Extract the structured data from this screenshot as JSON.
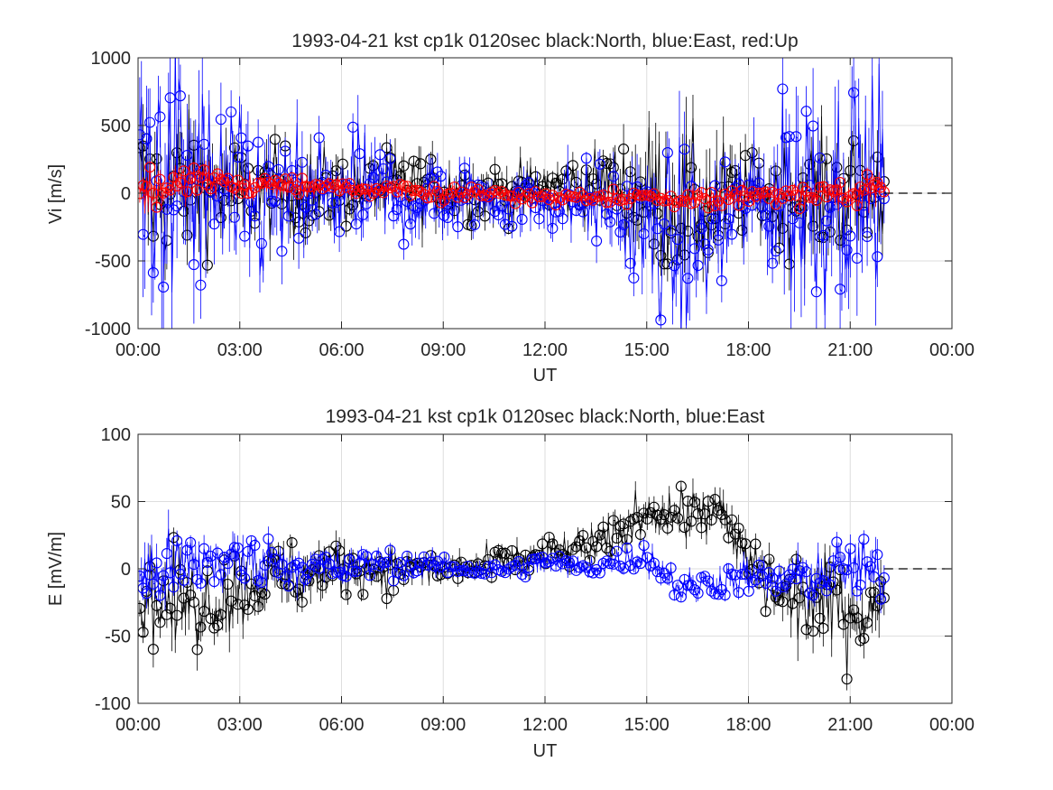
{
  "chart_data": [
    {
      "type": "scatter",
      "title": "1993-04-21 kst cp1k 0120sec black:North, blue:East, red:Up",
      "xlabel": "UT",
      "ylabel": "Vi [m/s]",
      "xticks": [
        "00:00",
        "03:00",
        "06:00",
        "09:00",
        "12:00",
        "15:00",
        "18:00",
        "21:00",
        "00:00"
      ],
      "yticks": [
        "-1000",
        "-500",
        "0",
        "500",
        "1000"
      ],
      "xlim_hours": [
        0,
        24
      ],
      "ylim": [
        -1000,
        1000
      ],
      "data_end_hours": 22.0,
      "zero_line": {
        "from_hours": 22.0,
        "to_hours": 24,
        "style": "dashed"
      },
      "grid": true,
      "marker": "circle-with-errorbars",
      "series": [
        {
          "name": "North",
          "color": "#000000",
          "envelope_hours": [
            0,
            1,
            2,
            3,
            4,
            5,
            6,
            7,
            8,
            9,
            10,
            11,
            12,
            13,
            14,
            15,
            16,
            17,
            18,
            19,
            20,
            21,
            22
          ],
          "center": [
            0,
            50,
            50,
            0,
            20,
            0,
            20,
            50,
            50,
            30,
            0,
            0,
            50,
            50,
            80,
            0,
            -100,
            -100,
            0,
            -30,
            0,
            0,
            0
          ],
          "spread": [
            600,
            500,
            400,
            350,
            300,
            300,
            250,
            250,
            250,
            220,
            200,
            180,
            200,
            200,
            250,
            450,
            500,
            450,
            250,
            350,
            400,
            400,
            350
          ]
        },
        {
          "name": "East",
          "color": "#0000ff",
          "envelope_hours": [
            0,
            1,
            2,
            3,
            4,
            5,
            6,
            7,
            8,
            9,
            10,
            11,
            12,
            13,
            14,
            15,
            16,
            17,
            18,
            19,
            20,
            21,
            22
          ],
          "center": [
            0,
            100,
            0,
            -50,
            -100,
            -50,
            0,
            0,
            -50,
            -50,
            -50,
            -50,
            -50,
            -50,
            -100,
            -300,
            -400,
            -300,
            -50,
            0,
            0,
            100,
            50
          ],
          "spread": [
            900,
            900,
            700,
            500,
            450,
            400,
            400,
            350,
            300,
            300,
            200,
            200,
            200,
            250,
            300,
            500,
            600,
            500,
            350,
            700,
            800,
            850,
            700
          ]
        },
        {
          "name": "Up",
          "color": "#ff0000",
          "envelope_hours": [
            0,
            1,
            2,
            3,
            4,
            5,
            6,
            7,
            8,
            9,
            10,
            11,
            12,
            13,
            14,
            15,
            16,
            17,
            18,
            19,
            20,
            21,
            22
          ],
          "center": [
            0,
            50,
            100,
            50,
            50,
            50,
            30,
            30,
            20,
            0,
            0,
            -20,
            -30,
            -30,
            -30,
            -20,
            -50,
            -50,
            -20,
            0,
            0,
            0,
            0
          ],
          "spread": [
            150,
            120,
            100,
            80,
            70,
            60,
            60,
            50,
            50,
            50,
            40,
            40,
            40,
            40,
            50,
            50,
            60,
            60,
            60,
            70,
            80,
            100,
            120
          ]
        }
      ]
    },
    {
      "type": "scatter",
      "title": "1993-04-21 kst cp1k 0120sec black:North, blue:East",
      "xlabel": "UT",
      "ylabel": "E [mV/m]",
      "xticks": [
        "00:00",
        "03:00",
        "06:00",
        "09:00",
        "12:00",
        "15:00",
        "18:00",
        "21:00",
        "00:00"
      ],
      "yticks": [
        "-100",
        "-50",
        "0",
        "50",
        "100"
      ],
      "xlim_hours": [
        0,
        24
      ],
      "ylim": [
        -100,
        100
      ],
      "data_end_hours": 22.0,
      "zero_line": {
        "from_hours": 22.0,
        "to_hours": 24,
        "style": "dashed"
      },
      "grid": true,
      "marker": "circle-with-errorbars",
      "series": [
        {
          "name": "North",
          "color": "#000000",
          "envelope_hours": [
            0,
            1,
            2,
            3,
            4,
            5,
            6,
            7,
            8,
            9,
            10,
            11,
            12,
            13,
            14,
            15,
            16,
            17,
            18,
            19,
            20,
            21,
            22
          ],
          "center": [
            -20,
            -25,
            -25,
            -15,
            -5,
            -5,
            0,
            0,
            0,
            0,
            0,
            5,
            10,
            15,
            20,
            45,
            40,
            45,
            5,
            -20,
            -25,
            -30,
            -30
          ],
          "spread": [
            30,
            30,
            28,
            25,
            25,
            25,
            20,
            15,
            12,
            12,
            10,
            12,
            12,
            12,
            15,
            15,
            18,
            18,
            20,
            25,
            30,
            30,
            30
          ]
        },
        {
          "name": "East",
          "color": "#0000ff",
          "envelope_hours": [
            0,
            1,
            2,
            3,
            4,
            5,
            6,
            7,
            8,
            9,
            10,
            11,
            12,
            13,
            14,
            15,
            16,
            17,
            18,
            19,
            20,
            21,
            22
          ],
          "center": [
            -5,
            0,
            5,
            5,
            5,
            0,
            0,
            5,
            2,
            2,
            0,
            0,
            5,
            0,
            5,
            10,
            -15,
            -10,
            -5,
            -10,
            -5,
            0,
            -5
          ],
          "spread": [
            25,
            25,
            20,
            20,
            15,
            15,
            12,
            10,
            8,
            8,
            7,
            7,
            7,
            7,
            8,
            10,
            10,
            10,
            12,
            15,
            18,
            20,
            20
          ]
        }
      ]
    }
  ]
}
